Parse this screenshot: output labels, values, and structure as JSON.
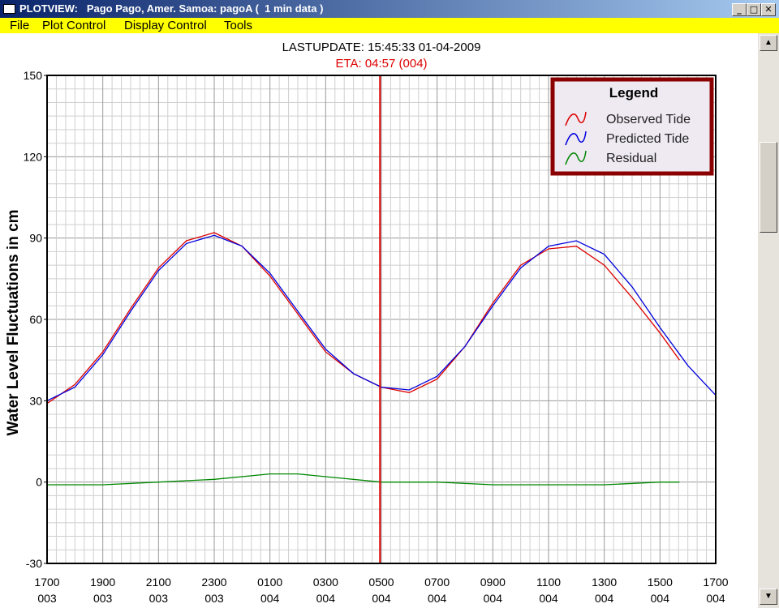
{
  "window": {
    "title": "PLOTVIEW:   Pago Pago, Amer. Samoa: pagoA (  1 min data )",
    "minimize_glyph": "_",
    "maximize_glyph": "□",
    "close_glyph": "✕"
  },
  "menu": {
    "file": "File",
    "plot_control": "Plot Control",
    "display_control": "Display Control",
    "tools": "Tools"
  },
  "header": {
    "last_update": "LASTUPDATE: 15:45:33  01-04-2009",
    "eta": "ETA: 04:57 (004)"
  },
  "scrollbar": {
    "up_glyph": "▲",
    "down_glyph": "▼"
  },
  "colors": {
    "observed": "#dd0000",
    "predicted": "#0000dd",
    "residual": "#008800",
    "eta_line": "#dd0000",
    "legend_border": "#8b0000",
    "legend_bg": "#efe9f2",
    "menubar": "#ffff00"
  },
  "chart_data": {
    "type": "line",
    "ylabel": "Water Level Fluctuations in cm",
    "ylim": [
      -30,
      150
    ],
    "yticks": [
      -30,
      0,
      30,
      60,
      90,
      120,
      150
    ],
    "xlim_hours": [
      0,
      24
    ],
    "xticks": [
      {
        "time": "1700",
        "day": "003"
      },
      {
        "time": "1900",
        "day": "003"
      },
      {
        "time": "2100",
        "day": "003"
      },
      {
        "time": "2300",
        "day": "003"
      },
      {
        "time": "0100",
        "day": "004"
      },
      {
        "time": "0300",
        "day": "004"
      },
      {
        "time": "0500",
        "day": "004"
      },
      {
        "time": "0700",
        "day": "004"
      },
      {
        "time": "0900",
        "day": "004"
      },
      {
        "time": "1100",
        "day": "004"
      },
      {
        "time": "1300",
        "day": "004"
      },
      {
        "time": "1500",
        "day": "004"
      },
      {
        "time": "1700",
        "day": "004"
      }
    ],
    "grid": true,
    "legend_title": "Legend",
    "legend_placement": "top-right",
    "eta_marker_hours": 11.95,
    "series": [
      {
        "name": "Observed Tide",
        "key": "observed",
        "x": [
          0,
          1,
          2,
          3,
          4,
          5,
          6,
          7,
          8,
          9,
          10,
          11,
          12,
          13,
          14,
          15,
          16,
          17,
          18,
          19,
          20,
          21,
          22,
          22.7
        ],
        "y": [
          29,
          36,
          48,
          64,
          79,
          89,
          92,
          87,
          76,
          62,
          48,
          40,
          35,
          33,
          38,
          50,
          66,
          80,
          86,
          87,
          80,
          68,
          55,
          45
        ]
      },
      {
        "name": "Predicted Tide",
        "key": "predicted",
        "x": [
          0,
          1,
          2,
          3,
          4,
          5,
          6,
          7,
          8,
          9,
          10,
          11,
          12,
          13,
          14,
          15,
          16,
          17,
          18,
          19,
          20,
          21,
          22,
          23,
          24
        ],
        "y": [
          30,
          35,
          47,
          63,
          78,
          88,
          91,
          87,
          77,
          63,
          49,
          40,
          35,
          34,
          39,
          50,
          65,
          79,
          87,
          89,
          84,
          72,
          57,
          43,
          32
        ]
      },
      {
        "name": "Residual",
        "key": "residual",
        "x": [
          0,
          2,
          4,
          6,
          8,
          9,
          10,
          12,
          14,
          16,
          18,
          20,
          22,
          22.7
        ],
        "y": [
          -1,
          -1,
          0,
          1,
          3,
          3,
          2,
          0,
          0,
          -1,
          -1,
          -1,
          0,
          0
        ]
      }
    ]
  }
}
